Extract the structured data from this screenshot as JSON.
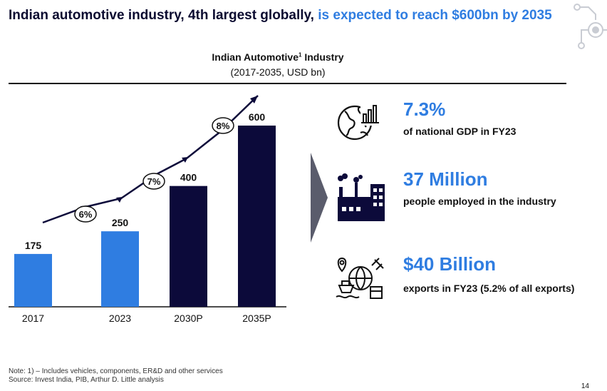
{
  "header": {
    "title_main": "Indian automotive industry, 4th largest globally,",
    "title_highlight": "is expected to reach $600bn by 2035"
  },
  "chart_title": "Indian Automotive",
  "chart_title_sup": "1",
  "chart_title_tail": " Industry",
  "chart_subtitle": "(2017-2035, USD bn)",
  "chart_data": {
    "type": "bar",
    "categories": [
      "2017",
      "2023",
      "2030P",
      "2035P"
    ],
    "values": [
      175,
      250,
      400,
      600
    ],
    "bar_colors": [
      "#2f7de1",
      "#2f7de1",
      "#0c0a3a",
      "#0c0a3a"
    ],
    "growth_labels": [
      "6%",
      "7%",
      "8%"
    ],
    "ylim": [
      0,
      600
    ]
  },
  "kpis": [
    {
      "icon": "globe-chart-icon",
      "value": "7.3%",
      "text": "of national GDP in FY23"
    },
    {
      "icon": "factory-icon",
      "value": "37 Million",
      "text": "people employed in the industry"
    },
    {
      "icon": "export-logistics-icon",
      "value": "$40 Billion",
      "text": "exports in FY23 (5.2% of all exports)"
    }
  ],
  "footer": {
    "note": "Note: 1) – Includes vehicles, components, ER&D and other services",
    "source": "Source: Invest India, PIB, Arthur D. Little analysis",
    "page": "14"
  },
  "colors": {
    "accent": "#2f7de1",
    "dark": "#0c0a3a"
  }
}
